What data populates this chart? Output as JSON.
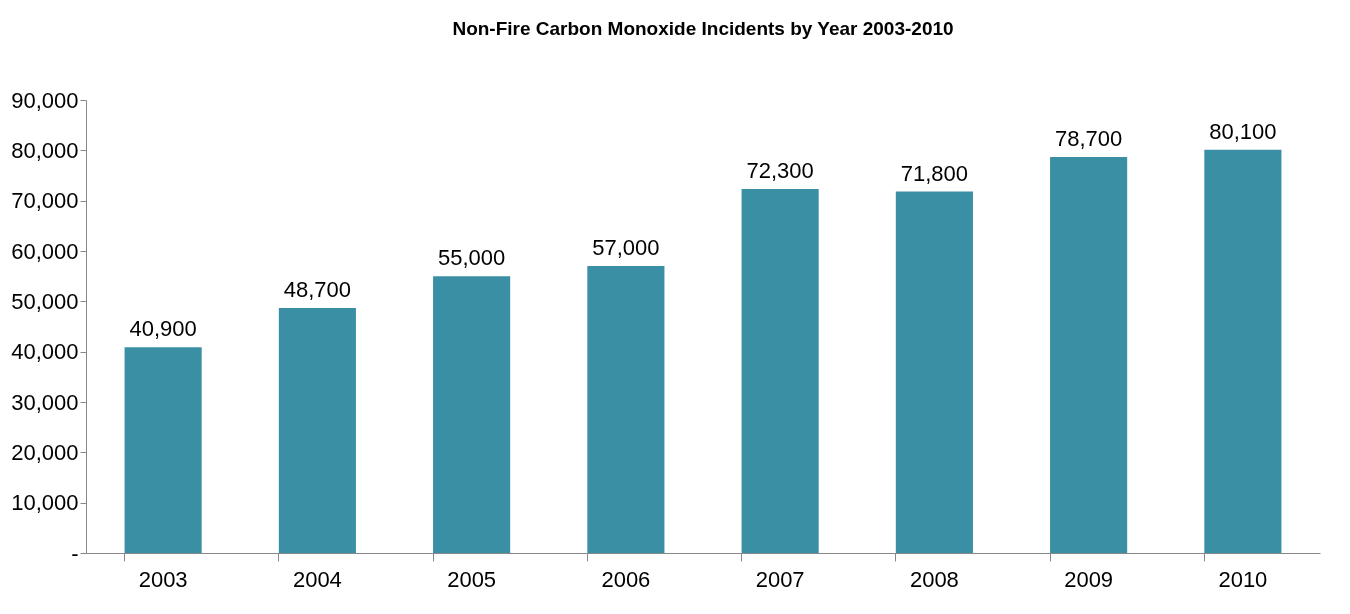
{
  "chart_data": {
    "type": "bar",
    "title": "Non-Fire Carbon Monoxide Incidents by Year 2003-2010",
    "categories": [
      "2003",
      "2004",
      "2005",
      "2006",
      "2007",
      "2008",
      "2009",
      "2010"
    ],
    "values": [
      40900,
      48700,
      55000,
      57000,
      72300,
      71800,
      78700,
      80100
    ],
    "value_labels": [
      "40,900",
      "48,700",
      "55,000",
      "57,000",
      "72,300",
      "71,800",
      "78,700",
      "80,100"
    ],
    "color": "#3a8fa5",
    "ylim": [
      0,
      90000
    ],
    "yticks": [
      {
        "value": 0,
        "label": "-"
      },
      {
        "value": 10000,
        "label": "10,000"
      },
      {
        "value": 20000,
        "label": "20,000"
      },
      {
        "value": 30000,
        "label": "30,000"
      },
      {
        "value": 40000,
        "label": "40,000"
      },
      {
        "value": 50000,
        "label": "50,000"
      },
      {
        "value": 60000,
        "label": "60,000"
      },
      {
        "value": 70000,
        "label": "70,000"
      },
      {
        "value": 80000,
        "label": "80,000"
      },
      {
        "value": 90000,
        "label": "90,000"
      }
    ],
    "grid": false
  }
}
